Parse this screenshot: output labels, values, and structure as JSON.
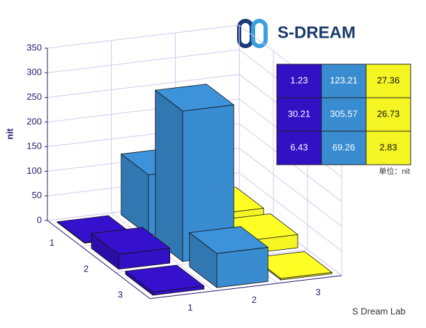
{
  "logo": "S-DREAM",
  "watermark": "S Dream Lab",
  "chart_data": {
    "type": "bar3d",
    "zlabel": "nit",
    "row_labels": [
      "1",
      "2",
      "3"
    ],
    "col_labels": [
      "1",
      "2",
      "3"
    ],
    "values": [
      [
        1.23,
        123.21,
        27.36
      ],
      [
        30.21,
        305.57,
        26.73
      ],
      [
        6.43,
        69.26,
        2.83
      ]
    ],
    "colors": [
      "#3210c4",
      "#3a8cd0",
      "#f5f524"
    ],
    "zlim": [
      0,
      350
    ],
    "zticks": [
      0,
      50,
      100,
      150,
      200,
      250,
      300,
      350
    ],
    "grid": true,
    "table_note": "单位：nit"
  }
}
